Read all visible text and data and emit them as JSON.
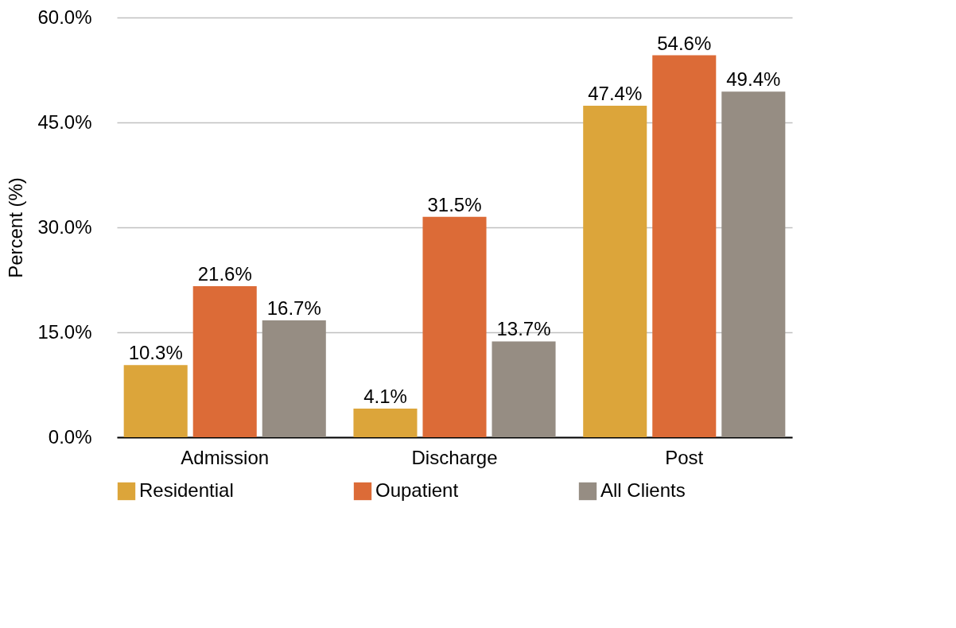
{
  "chart_data": {
    "type": "bar",
    "ylabel": "Percent (%)",
    "categories": [
      "Admission",
      "Discharge",
      "Post"
    ],
    "series": [
      {
        "name": "Residential",
        "color": "#dca53a",
        "values": [
          10.3,
          4.1,
          47.4
        ],
        "value_labels": [
          "10.3%",
          "4.1%",
          "47.4%"
        ]
      },
      {
        "name": "Oupatient",
        "color": "#dc6b37",
        "values": [
          21.6,
          31.5,
          54.6
        ],
        "value_labels": [
          "21.6%",
          "31.5%",
          "54.6%"
        ]
      },
      {
        "name": "All Clients",
        "color": "#968d83",
        "values": [
          16.7,
          13.7,
          49.4
        ],
        "value_labels": [
          "16.7%",
          "13.7%",
          "49.4%"
        ]
      }
    ],
    "ylim": [
      0,
      60
    ],
    "yticks": [
      {
        "value": 0,
        "label": "0.0%"
      },
      {
        "value": 15,
        "label": "15.0%"
      },
      {
        "value": 30,
        "label": "30.0%"
      },
      {
        "value": 45,
        "label": "45.0%"
      },
      {
        "value": 60,
        "label": "60.0%"
      }
    ],
    "grid": "y",
    "legend": "bottom"
  }
}
